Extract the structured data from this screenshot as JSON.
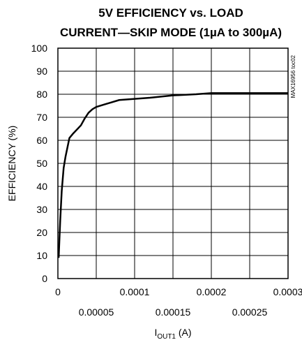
{
  "chart_data": {
    "type": "line",
    "title_lines": [
      "5V EFFICIENCY vs. LOAD",
      "CURRENT—SKIP MODE (1µA to 300µA)"
    ],
    "xlabel": "I",
    "xlabel_sub": "OUT1",
    "xlabel_unit": " (A)",
    "ylabel": "EFFICIENCY (%)",
    "side_note": "MAX16956 toc02",
    "xlim": [
      0,
      0.0003
    ],
    "ylim": [
      0,
      100
    ],
    "x_ticks_major": [
      {
        "value": 0,
        "label": "0"
      },
      {
        "value": 0.0001,
        "label": "0.0001"
      },
      {
        "value": 0.0002,
        "label": "0.0002"
      },
      {
        "value": 0.0003,
        "label": "0.0003"
      }
    ],
    "x_ticks_minor": [
      {
        "value": 5e-05,
        "label": "0.00005"
      },
      {
        "value": 0.00015,
        "label": "0.00015"
      },
      {
        "value": 0.00025,
        "label": "0.00025"
      }
    ],
    "y_ticks": [
      {
        "value": 0,
        "label": "0"
      },
      {
        "value": 10,
        "label": "10"
      },
      {
        "value": 20,
        "label": "20"
      },
      {
        "value": 30,
        "label": "30"
      },
      {
        "value": 40,
        "label": "40"
      },
      {
        "value": 50,
        "label": "50"
      },
      {
        "value": 60,
        "label": "60"
      },
      {
        "value": 70,
        "label": "70"
      },
      {
        "value": 80,
        "label": "80"
      },
      {
        "value": 90,
        "label": "90"
      },
      {
        "value": 100,
        "label": "100"
      }
    ],
    "grid": true,
    "series": [
      {
        "color": "#000000",
        "x": [
          1e-06,
          3e-06,
          5e-06,
          7.5e-06,
          1e-05,
          1.5e-05,
          2e-05,
          3e-05,
          3.5e-05,
          4e-05,
          4.5e-05,
          5e-05,
          6e-05,
          7e-05,
          8e-05,
          0.0001,
          0.00012,
          0.00015,
          0.00018,
          0.0002,
          0.00025,
          0.0003
        ],
        "y": [
          9,
          25,
          38,
          48,
          53,
          61,
          63,
          66.5,
          69.5,
          72,
          73.5,
          74.5,
          75.5,
          76.5,
          77.5,
          78,
          78.5,
          79.5,
          80,
          80.5,
          80.5,
          80.5
        ]
      }
    ]
  }
}
